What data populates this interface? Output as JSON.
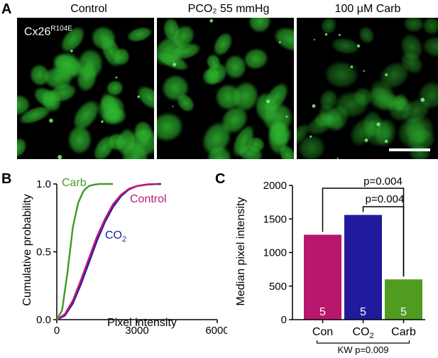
{
  "panels": {
    "A": {
      "letter": "A",
      "images": [
        {
          "title": "Control"
        },
        {
          "title": "PCO₂ 55 mmHg"
        },
        {
          "title": "100 μM Carb"
        }
      ],
      "overlay_label_base": "Cx26",
      "overlay_label_sup": "R104E",
      "image_color": "#2fb82f"
    },
    "B": {
      "letter": "B"
    },
    "C": {
      "letter": "C"
    }
  },
  "chart_data": [
    {
      "panel": "B",
      "type": "line",
      "xlabel": "Pixel intensity",
      "ylabel": "Cumulative probability",
      "xlim": [
        0,
        6000
      ],
      "ylim": [
        0,
        1.0
      ],
      "x_ticks": [
        "0",
        "3000",
        "6000"
      ],
      "y_ticks": [
        "0.0",
        "0.5",
        "1.0"
      ],
      "series": [
        {
          "name": "Carb",
          "color": "#4a9a2a",
          "x": [
            0,
            200,
            400,
            600,
            800,
            1000,
            1200,
            1400,
            1600,
            1800,
            2100
          ],
          "y": [
            0.0,
            0.07,
            0.35,
            0.68,
            0.86,
            0.95,
            0.985,
            0.995,
            1.0,
            1.0,
            1.0
          ]
        },
        {
          "name": "CO₂",
          "color": "#1f1f9f",
          "x": [
            0,
            300,
            600,
            900,
            1200,
            1500,
            1800,
            2100,
            2400,
            2700,
            3000,
            3400,
            3900
          ],
          "y": [
            0.0,
            0.03,
            0.12,
            0.26,
            0.42,
            0.58,
            0.72,
            0.83,
            0.91,
            0.96,
            0.985,
            0.997,
            1.0
          ]
        },
        {
          "name": "Control",
          "color": "#c0187a",
          "x": [
            0,
            300,
            600,
            900,
            1200,
            1500,
            1800,
            2100,
            2400,
            2700,
            3000,
            3400,
            3800
          ],
          "y": [
            0.0,
            0.04,
            0.14,
            0.29,
            0.45,
            0.61,
            0.74,
            0.85,
            0.92,
            0.965,
            0.985,
            0.997,
            1.0
          ]
        }
      ]
    },
    {
      "panel": "C",
      "type": "bar",
      "ylabel": "Median pixel intensity",
      "ylim": [
        0,
        2000
      ],
      "y_ticks": [
        "0",
        "500",
        "1000",
        "1500",
        "2000"
      ],
      "categories": [
        "Con",
        "CO₂",
        "Carb"
      ],
      "values": [
        1265,
        1560,
        600
      ],
      "bar_colors": [
        "#b8176e",
        "#221a9c",
        "#4f9c21"
      ],
      "n_labels": [
        "5",
        "5",
        "5"
      ],
      "comparisons": [
        {
          "label": "p=0.004",
          "from": 0,
          "to": 2
        },
        {
          "label": "p=0.004",
          "from": 1,
          "to": 2
        }
      ],
      "kw_label": "KW p=0.009"
    }
  ]
}
